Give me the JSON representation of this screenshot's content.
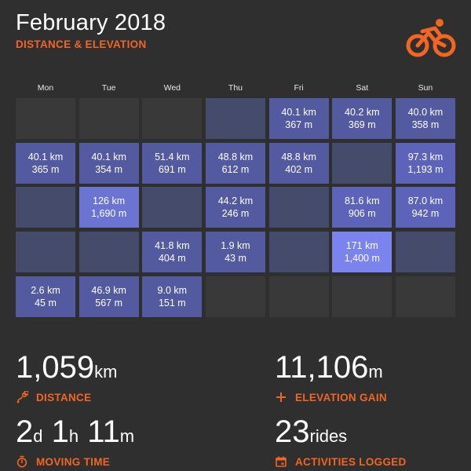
{
  "header": {
    "title": "February 2018",
    "subtitle": "DISTANCE & ELEVATION",
    "logo_icon": "cyclist-icon",
    "accent": "#f26522"
  },
  "calendar": {
    "weekdays": [
      "Mon",
      "Tue",
      "Wed",
      "Thu",
      "Fri",
      "Sat",
      "Sun"
    ],
    "weeks": [
      [
        {
          "type": "empty"
        },
        {
          "type": "empty"
        },
        {
          "type": "empty"
        },
        {
          "type": "zero"
        },
        {
          "type": "ride",
          "tier": "t1",
          "distance": "40.1 km",
          "elevation": "367 m"
        },
        {
          "type": "ride",
          "tier": "t1",
          "distance": "40.2 km",
          "elevation": "369 m"
        },
        {
          "type": "ride",
          "tier": "t1",
          "distance": "40.0 km",
          "elevation": "358 m"
        }
      ],
      [
        {
          "type": "ride",
          "tier": "t1",
          "distance": "40.1 km",
          "elevation": "365 m"
        },
        {
          "type": "ride",
          "tier": "t1",
          "distance": "40.1 km",
          "elevation": "354 m"
        },
        {
          "type": "ride",
          "tier": "t1",
          "distance": "51.4 km",
          "elevation": "691 m"
        },
        {
          "type": "ride",
          "tier": "t1",
          "distance": "48.8 km",
          "elevation": "612 m"
        },
        {
          "type": "ride",
          "tier": "t1",
          "distance": "48.8 km",
          "elevation": "402 m"
        },
        {
          "type": "zero"
        },
        {
          "type": "ride",
          "tier": "t2",
          "distance": "97.3 km",
          "elevation": "1,193 m"
        }
      ],
      [
        {
          "type": "zero"
        },
        {
          "type": "ride",
          "tier": "t3",
          "distance": "126 km",
          "elevation": "1,690 m"
        },
        {
          "type": "zero"
        },
        {
          "type": "ride",
          "tier": "t1",
          "distance": "44.2 km",
          "elevation": "246 m"
        },
        {
          "type": "zero"
        },
        {
          "type": "ride",
          "tier": "t2",
          "distance": "81.6 km",
          "elevation": "906 m"
        },
        {
          "type": "ride",
          "tier": "t2",
          "distance": "87.0 km",
          "elevation": "942 m"
        }
      ],
      [
        {
          "type": "zero"
        },
        {
          "type": "zero"
        },
        {
          "type": "ride",
          "tier": "t1",
          "distance": "41.8 km",
          "elevation": "404 m"
        },
        {
          "type": "ride",
          "tier": "t1",
          "distance": "1.9 km",
          "elevation": "43 m"
        },
        {
          "type": "zero"
        },
        {
          "type": "ride",
          "tier": "t4",
          "distance": "171 km",
          "elevation": "1,400 m"
        },
        {
          "type": "zero"
        }
      ],
      [
        {
          "type": "ride",
          "tier": "t1",
          "distance": "2.6 km",
          "elevation": "45 m"
        },
        {
          "type": "ride",
          "tier": "t1",
          "distance": "46.9 km",
          "elevation": "567 m"
        },
        {
          "type": "ride",
          "tier": "t1",
          "distance": "9.0 km",
          "elevation": "151 m"
        },
        {
          "type": "empty"
        },
        {
          "type": "empty"
        },
        {
          "type": "empty"
        },
        {
          "type": "empty"
        }
      ]
    ]
  },
  "stats": {
    "distance": {
      "value": "1,059",
      "unit": "km",
      "label": "DISTANCE",
      "icon": "route-pin-icon"
    },
    "elevation": {
      "value": "11,106",
      "unit": "m",
      "label": "ELEVATION GAIN",
      "icon": "plus-icon"
    },
    "moving_time": {
      "days": "2",
      "days_unit": "d",
      "hours": "1",
      "hours_unit": "h",
      "minutes": "11",
      "minutes_unit": "m",
      "label": "MOVING TIME",
      "icon": "stopwatch-icon"
    },
    "activities": {
      "value": "23",
      "unit": "rides",
      "label": "ACTIVITIES LOGGED",
      "icon": "calendar-icon"
    }
  }
}
